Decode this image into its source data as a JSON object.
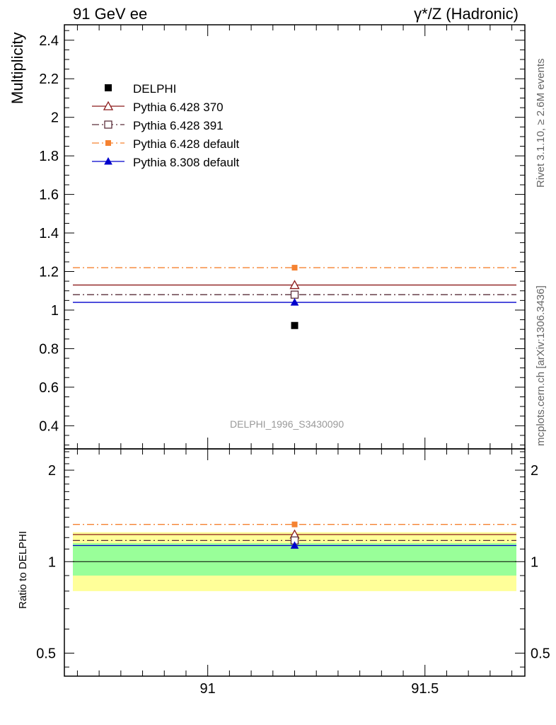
{
  "header": {
    "left": "91 GeV ee",
    "right": "γ*/Z (Hadronic)"
  },
  "side": {
    "rivet": "Rivet 3.1.10, ≥ 2.6M events",
    "mcplots": "mcplots.cern.ch [arXiv:1306.3436]"
  },
  "analysis_tag": "DELPHI_1996_S3430090",
  "chart_data": [
    {
      "type": "line",
      "panel": "main",
      "ylabel": "Multiplicity",
      "xlim": [
        90.67,
        91.73
      ],
      "ylim": [
        0.28,
        2.48
      ],
      "yticks": [
        0.4,
        0.6,
        0.8,
        1,
        1.2,
        1.4,
        1.6,
        1.8,
        2,
        2.2,
        2.4
      ],
      "ytick_labels": [
        "0.4",
        "0.6",
        "0.8",
        "1",
        "1.2",
        "1.4",
        "1.6",
        "1.8",
        "2",
        "2.2",
        "2.4"
      ],
      "legend_position": "top-left",
      "data": {
        "name": "DELPHI",
        "x": 91.2,
        "y": 0.92,
        "color": "#000000"
      },
      "series": [
        {
          "name": "Pythia 6.428 370",
          "x": [
            90.67,
            91.73
          ],
          "y": [
            1.13,
            1.13
          ],
          "marker_x": 91.2,
          "marker_y": 1.13,
          "color": "#8b1a1a",
          "marker": "open-triangle",
          "dash": "solid"
        },
        {
          "name": "Pythia 6.428 391",
          "x": [
            90.67,
            91.73
          ],
          "y": [
            1.08,
            1.08
          ],
          "marker_x": 91.2,
          "marker_y": 1.08,
          "color": "#5a2e3a",
          "marker": "open-square",
          "dash": "dashdot"
        },
        {
          "name": "Pythia 6.428 default",
          "x": [
            90.67,
            91.73
          ],
          "y": [
            1.22,
            1.22
          ],
          "marker_x": 91.2,
          "marker_y": 1.22,
          "color": "#f58231",
          "marker": "filled-square",
          "dash": "dashdot"
        },
        {
          "name": "Pythia 8.308 default",
          "x": [
            90.67,
            91.73
          ],
          "y": [
            1.04,
            1.04
          ],
          "marker_x": 91.2,
          "marker_y": 1.04,
          "color": "#0000cc",
          "marker": "filled-triangle",
          "dash": "solid"
        }
      ]
    },
    {
      "type": "line",
      "panel": "ratio",
      "ylabel": "Ratio to DELPHI",
      "xlabel": "",
      "xlim": [
        90.67,
        91.73
      ],
      "ylim": [
        0.42,
        2.35
      ],
      "log_y": true,
      "yticks": [
        0.5,
        1,
        2
      ],
      "ytick_labels": [
        "0.5",
        "1",
        "2"
      ],
      "xticks": [
        91,
        91.5
      ],
      "xtick_labels": [
        "91",
        "91.5"
      ],
      "bands": [
        {
          "name": "2-sigma",
          "low": 0.8,
          "high": 1.25,
          "color": "#ffff99"
        },
        {
          "name": "1-sigma",
          "low": 0.9,
          "high": 1.15,
          "color": "#99ff99"
        }
      ],
      "reference": 1.0,
      "series": [
        {
          "name": "Pythia 6.428 370",
          "value": 1.228,
          "color": "#8b1a1a",
          "marker": "open-triangle",
          "dash": "solid"
        },
        {
          "name": "Pythia 6.428 391",
          "value": 1.174,
          "color": "#5a2e3a",
          "marker": "open-square",
          "dash": "dashdot"
        },
        {
          "name": "Pythia 6.428 default",
          "value": 1.326,
          "color": "#f58231",
          "marker": "filled-square",
          "dash": "dashdot"
        },
        {
          "name": "Pythia 8.308 default",
          "value": 1.13,
          "color": "#0000cc",
          "marker": "filled-triangle",
          "dash": "solid"
        }
      ]
    }
  ]
}
